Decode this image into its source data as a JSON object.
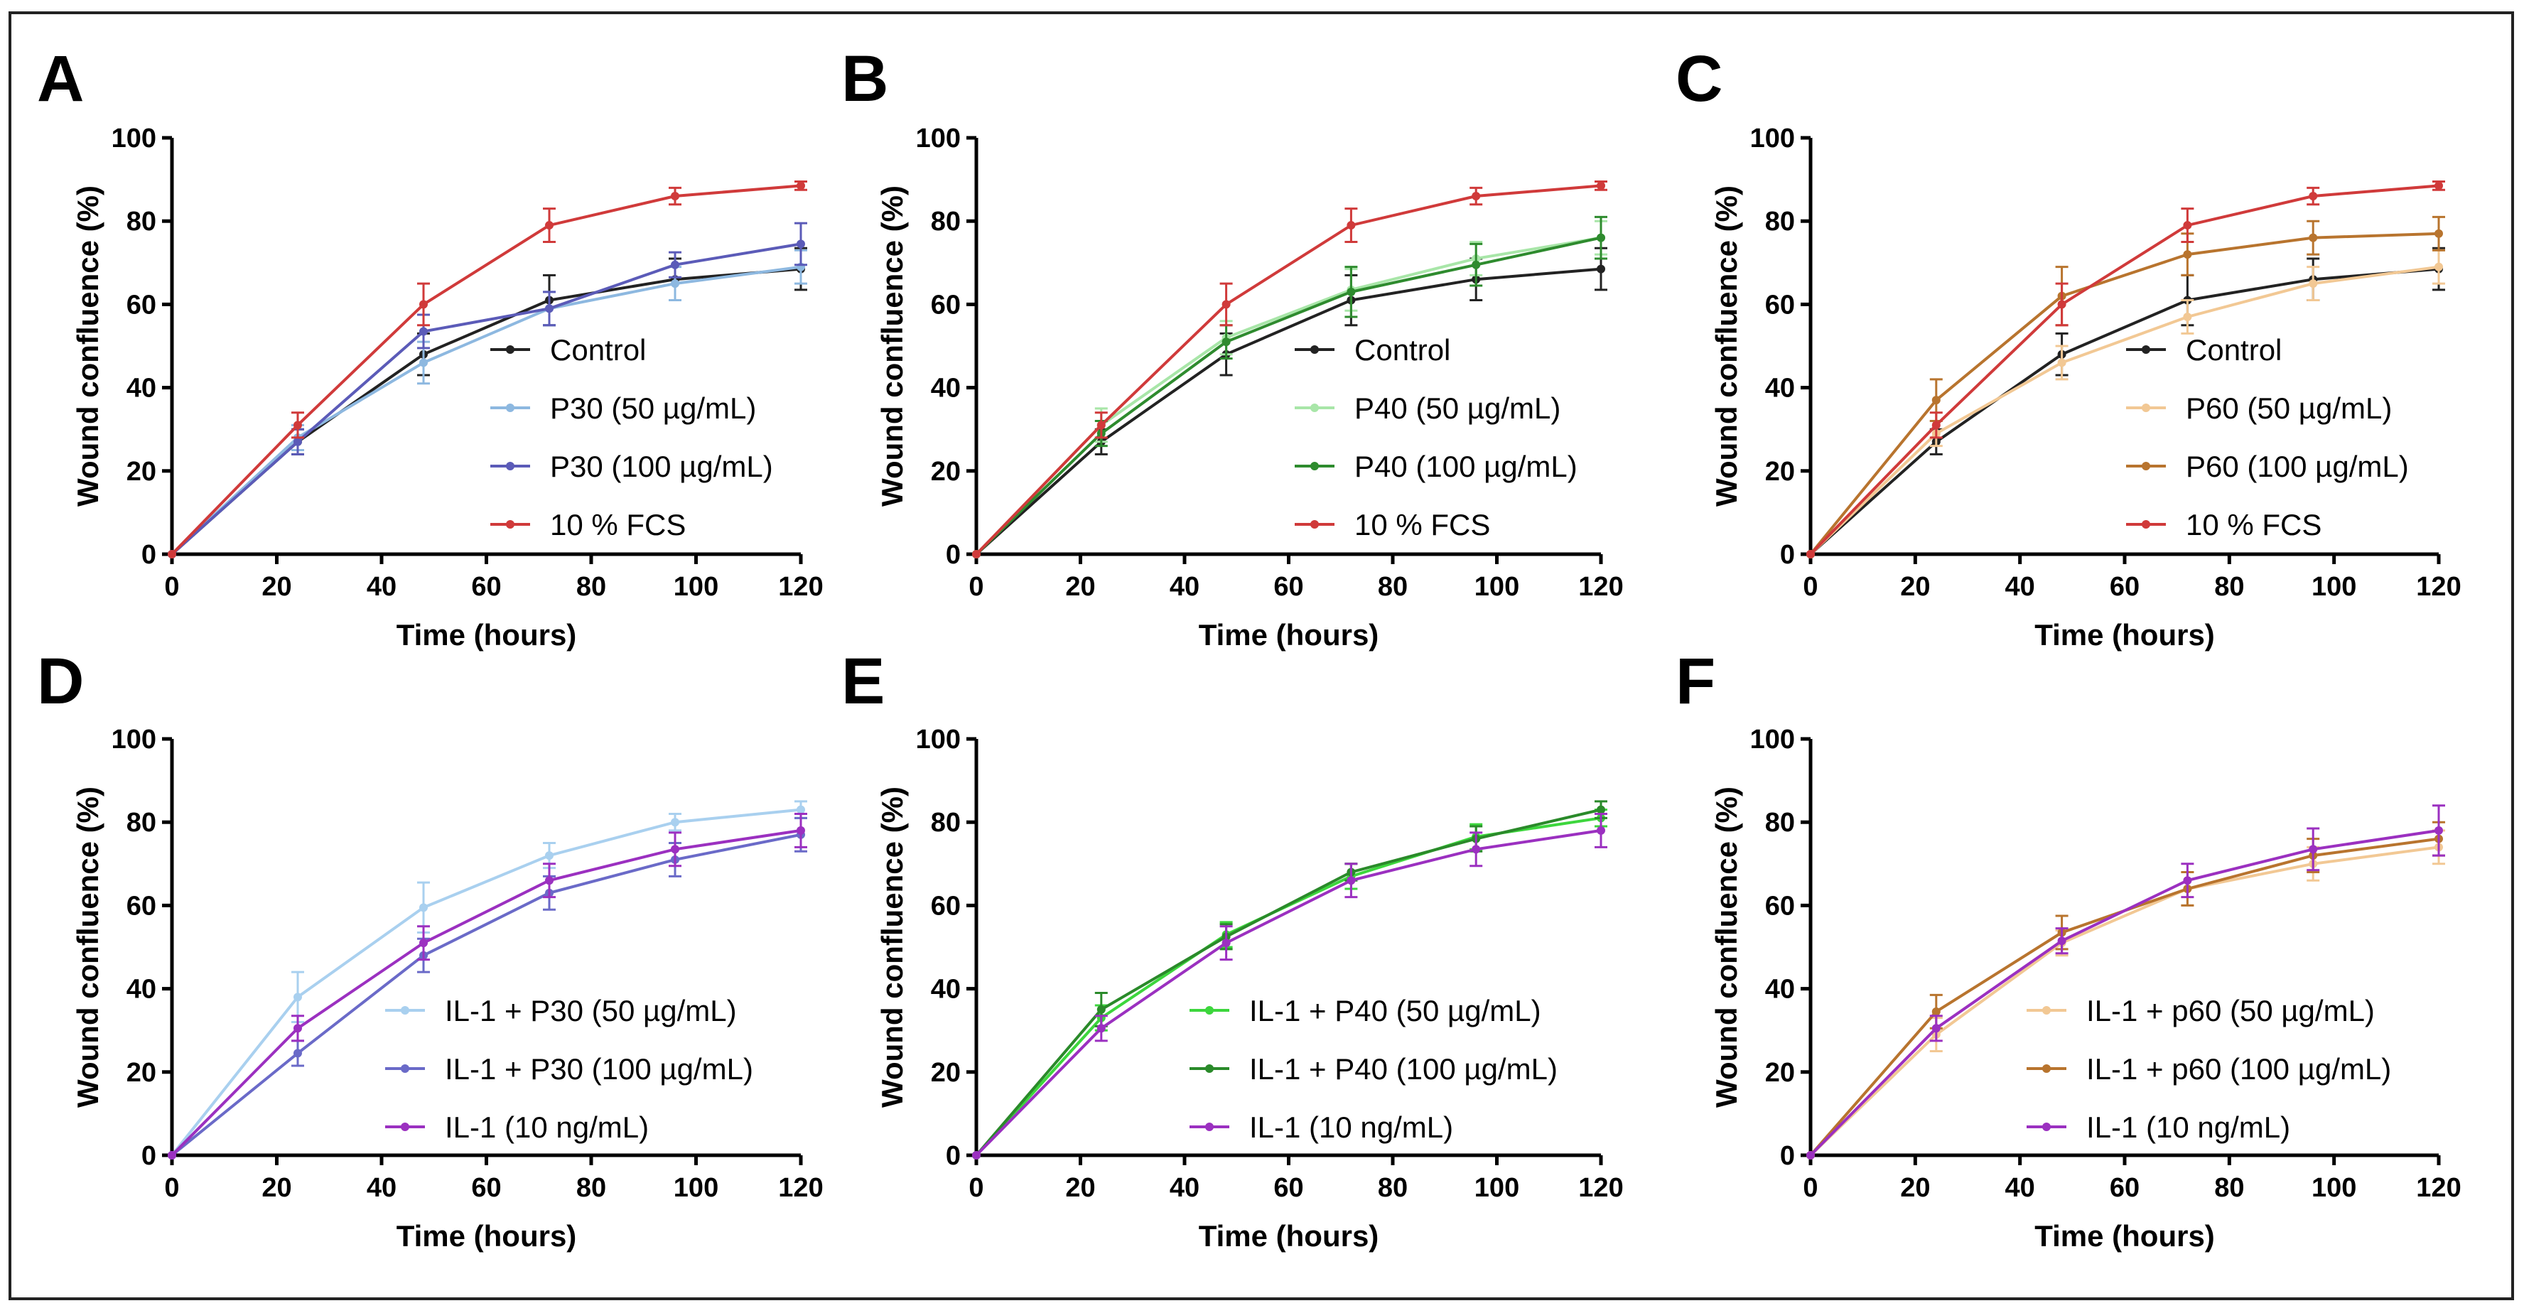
{
  "chart_data": [
    {
      "panel": "A",
      "type": "line",
      "xlabel": "Time (hours)",
      "ylabel": "Wound confluence (%)",
      "xlim": [
        0,
        120
      ],
      "ylim": [
        0,
        100
      ],
      "xticks": [
        "0",
        "20",
        "40",
        "60",
        "80",
        "100",
        "120"
      ],
      "yticks": [
        "0",
        "20",
        "40",
        "60",
        "80",
        "100"
      ],
      "x": [
        0,
        24,
        48,
        72,
        96,
        120
      ],
      "legend_position": "center-right",
      "series": [
        {
          "name": "Control",
          "color": "#222222",
          "values": [
            0,
            27,
            48,
            61,
            66,
            68.5
          ],
          "errors": [
            0,
            3,
            5,
            6,
            5,
            5
          ]
        },
        {
          "name": "P30 (50 µg/mL)",
          "color": "#8db8e0",
          "values": [
            0,
            28,
            46,
            59,
            65,
            69
          ],
          "errors": [
            0,
            3,
            5,
            4,
            4,
            4
          ]
        },
        {
          "name": "P30 (100 µg/mL)",
          "color": "#5b5bb8",
          "values": [
            0,
            27,
            53.5,
            59,
            69.5,
            74.5
          ],
          "errors": [
            0,
            3,
            4,
            4,
            3,
            5
          ]
        },
        {
          "name": "10 % FCS",
          "color": "#d03a3a",
          "values": [
            0,
            31,
            60,
            79,
            86,
            88.5
          ],
          "errors": [
            0,
            3,
            5,
            4,
            2,
            1
          ]
        }
      ]
    },
    {
      "panel": "B",
      "type": "line",
      "xlabel": "Time (hours)",
      "ylabel": "Wound confluence (%)",
      "xlim": [
        0,
        120
      ],
      "ylim": [
        0,
        100
      ],
      "xticks": [
        "0",
        "20",
        "40",
        "60",
        "80",
        "100",
        "120"
      ],
      "yticks": [
        "0",
        "20",
        "40",
        "60",
        "80",
        "100"
      ],
      "x": [
        0,
        24,
        48,
        72,
        96,
        120
      ],
      "legend_position": "center-right",
      "series": [
        {
          "name": "Control",
          "color": "#222222",
          "values": [
            0,
            27,
            48,
            61,
            66,
            68.5
          ],
          "errors": [
            0,
            3,
            5,
            6,
            5,
            5
          ]
        },
        {
          "name": "P40 (50 µg/mL)",
          "color": "#a8e6a8",
          "values": [
            0,
            31,
            52,
            63.5,
            71,
            76
          ],
          "errors": [
            0,
            4,
            4,
            5,
            4,
            4
          ]
        },
        {
          "name": "P40 (100 µg/mL)",
          "color": "#2e8b2e",
          "values": [
            0,
            29,
            51,
            63,
            69.5,
            76
          ],
          "errors": [
            0,
            3,
            4,
            6,
            5,
            5
          ]
        },
        {
          "name": "10 % FCS",
          "color": "#d03a3a",
          "values": [
            0,
            31,
            60,
            79,
            86,
            88.5
          ],
          "errors": [
            0,
            3,
            5,
            4,
            2,
            1
          ]
        }
      ]
    },
    {
      "panel": "C",
      "type": "line",
      "xlabel": "Time (hours)",
      "ylabel": "Wound confluence (%)",
      "xlim": [
        0,
        120
      ],
      "ylim": [
        0,
        100
      ],
      "xticks": [
        "0",
        "20",
        "40",
        "60",
        "80",
        "100",
        "120"
      ],
      "yticks": [
        "0",
        "20",
        "40",
        "60",
        "80",
        "100"
      ],
      "x": [
        0,
        24,
        48,
        72,
        96,
        120
      ],
      "legend_position": "center-right",
      "series": [
        {
          "name": "Control",
          "color": "#222222",
          "values": [
            0,
            27,
            48,
            61,
            66,
            68.5
          ],
          "errors": [
            0,
            3,
            5,
            6,
            5,
            5
          ]
        },
        {
          "name": "P60 (50 µg/mL)",
          "color": "#f2c894",
          "values": [
            0,
            29,
            46,
            57,
            65,
            69
          ],
          "errors": [
            0,
            3,
            4,
            4,
            4,
            4
          ]
        },
        {
          "name": "P60 (100 µg/mL)",
          "color": "#b8742e",
          "values": [
            0,
            37,
            62,
            72,
            76,
            77
          ],
          "errors": [
            0,
            5,
            7,
            5,
            4,
            4
          ]
        },
        {
          "name": "10 % FCS",
          "color": "#d03a3a",
          "values": [
            0,
            31,
            60,
            79,
            86,
            88.5
          ],
          "errors": [
            0,
            3,
            5,
            4,
            2,
            1
          ]
        }
      ]
    },
    {
      "panel": "D",
      "type": "line",
      "xlabel": "Time (hours)",
      "ylabel": "Wound confluence (%)",
      "xlim": [
        0,
        120
      ],
      "ylim": [
        0,
        100
      ],
      "xticks": [
        "0",
        "20",
        "40",
        "60",
        "80",
        "100",
        "120"
      ],
      "yticks": [
        "0",
        "20",
        "40",
        "60",
        "80",
        "100"
      ],
      "x": [
        0,
        24,
        48,
        72,
        96,
        120
      ],
      "legend_position": "bottom-right",
      "series": [
        {
          "name": "IL-1 + P30 (50 µg/mL)",
          "color": "#a9d0ef",
          "values": [
            0,
            38,
            59.5,
            72,
            80,
            83
          ],
          "errors": [
            0,
            6,
            6,
            3,
            2,
            2
          ]
        },
        {
          "name": "IL-1 + P30 (100 µg/mL)",
          "color": "#6a6ac8",
          "values": [
            0,
            24.5,
            48,
            63,
            71,
            77
          ],
          "errors": [
            0,
            3,
            4,
            4,
            4,
            4
          ]
        },
        {
          "name": "IL-1 (10 ng/mL)",
          "color": "#9b30c0",
          "values": [
            0,
            30.5,
            51,
            66,
            73.5,
            78
          ],
          "errors": [
            0,
            3,
            4,
            4,
            4,
            4
          ]
        }
      ]
    },
    {
      "panel": "E",
      "type": "line",
      "xlabel": "Time (hours)",
      "ylabel": "Wound confluence (%)",
      "xlim": [
        0,
        120
      ],
      "ylim": [
        0,
        100
      ],
      "xticks": [
        "0",
        "20",
        "40",
        "60",
        "80",
        "100",
        "120"
      ],
      "yticks": [
        "0",
        "20",
        "40",
        "60",
        "80",
        "100"
      ],
      "x": [
        0,
        24,
        48,
        72,
        96,
        120
      ],
      "legend_position": "bottom-right",
      "series": [
        {
          "name": "IL-1 + P40 (50 µg/mL)",
          "color": "#3dd63d",
          "values": [
            0,
            33,
            53,
            67,
            76.5,
            81
          ],
          "errors": [
            0,
            3,
            3,
            3,
            3,
            2
          ]
        },
        {
          "name": "IL-1 + P40 (100 µg/mL)",
          "color": "#2a8a2a",
          "values": [
            0,
            35,
            52.5,
            68,
            76,
            83
          ],
          "errors": [
            0,
            4,
            3,
            2,
            3,
            2
          ]
        },
        {
          "name": "IL-1 (10 ng/mL)",
          "color": "#9b30c0",
          "values": [
            0,
            30.5,
            51,
            66,
            73.5,
            78
          ],
          "errors": [
            0,
            3,
            4,
            4,
            4,
            4
          ]
        }
      ]
    },
    {
      "panel": "F",
      "type": "line",
      "xlabel": "Time (hours)",
      "ylabel": "Wound confluence (%)",
      "xlim": [
        0,
        120
      ],
      "ylim": [
        0,
        100
      ],
      "xticks": [
        "0",
        "20",
        "40",
        "60",
        "80",
        "100",
        "120"
      ],
      "yticks": [
        "0",
        "20",
        "40",
        "60",
        "80",
        "100"
      ],
      "x": [
        0,
        24,
        48,
        72,
        96,
        120
      ],
      "legend_position": "bottom-right",
      "series": [
        {
          "name": "IL-1 + p60 (50 µg/mL)",
          "color": "#f2c894",
          "values": [
            0,
            29,
            51,
            64,
            70,
            74
          ],
          "errors": [
            0,
            4,
            3,
            4,
            4,
            4
          ]
        },
        {
          "name": "IL-1 + p60 (100 µg/mL)",
          "color": "#b8742e",
          "values": [
            0,
            34.5,
            53.5,
            64,
            72,
            76
          ],
          "errors": [
            0,
            4,
            4,
            4,
            4,
            4
          ]
        },
        {
          "name": "IL-1 (10 ng/mL)",
          "color": "#9b30c0",
          "values": [
            0,
            30.5,
            51.5,
            66,
            73.5,
            78
          ],
          "errors": [
            0,
            3,
            3,
            4,
            5,
            6
          ]
        }
      ]
    }
  ]
}
